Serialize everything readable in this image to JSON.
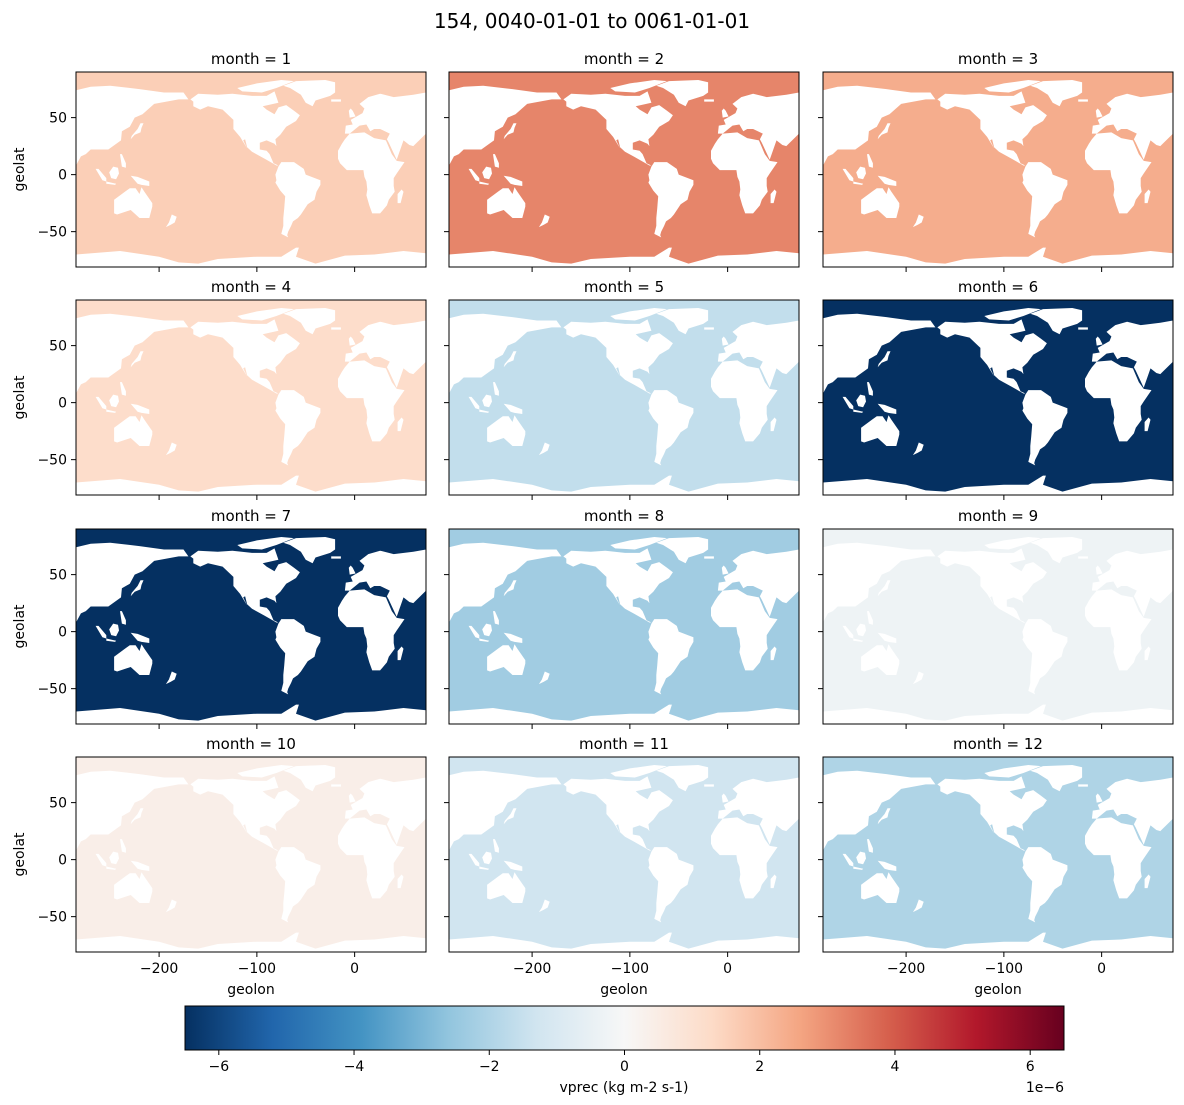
{
  "title": "154, 0040-01-01 to 0061-01-01",
  "chart_data": {
    "type": "heatmap",
    "layout": "facet-grid 4 rows x 3 columns",
    "variable": "vprec",
    "units": "kg m-2 s-1",
    "colormap": "RdBu_r",
    "scale_exponent_label": "1e−6",
    "clim": [
      -6.5e-06,
      6.5e-06
    ],
    "xlabel": "geolon",
    "ylabel": "geolat",
    "xlim": [
      -285,
      73
    ],
    "ylim": [
      -81,
      90
    ],
    "xticks": [
      -200,
      -100,
      0
    ],
    "xtick_labels": [
      "−200",
      "−100",
      "0"
    ],
    "yticks": [
      50,
      0,
      -50
    ],
    "ytick_labels": [
      "50",
      "0",
      "−50"
    ],
    "cbar_ticks": [
      -6,
      -4,
      -2,
      0,
      2,
      4,
      6
    ],
    "cbar_tick_labels": [
      "−6",
      "−4",
      "−2",
      "0",
      "2",
      "4",
      "6"
    ],
    "cbar_label": "vprec (kg m-2 s-1)",
    "panels": [
      {
        "title": "month = 1",
        "value": 1.6e-06
      },
      {
        "title": "month = 2",
        "value": 3.2e-06
      },
      {
        "title": "month = 3",
        "value": 2.4e-06
      },
      {
        "title": "month = 4",
        "value": 1.2e-06
      },
      {
        "title": "month = 5",
        "value": -1.6e-06
      },
      {
        "title": "month = 6",
        "value": -6.5e-06
      },
      {
        "title": "month = 7",
        "value": -6.5e-06
      },
      {
        "title": "month = 8",
        "value": -2.3e-06
      },
      {
        "title": "month = 9",
        "value": -3e-07
      },
      {
        "title": "month = 10",
        "value": 4e-07
      },
      {
        "title": "month = 11",
        "value": -1.3e-06
      },
      {
        "title": "month = 12",
        "value": -2e-06
      }
    ]
  }
}
